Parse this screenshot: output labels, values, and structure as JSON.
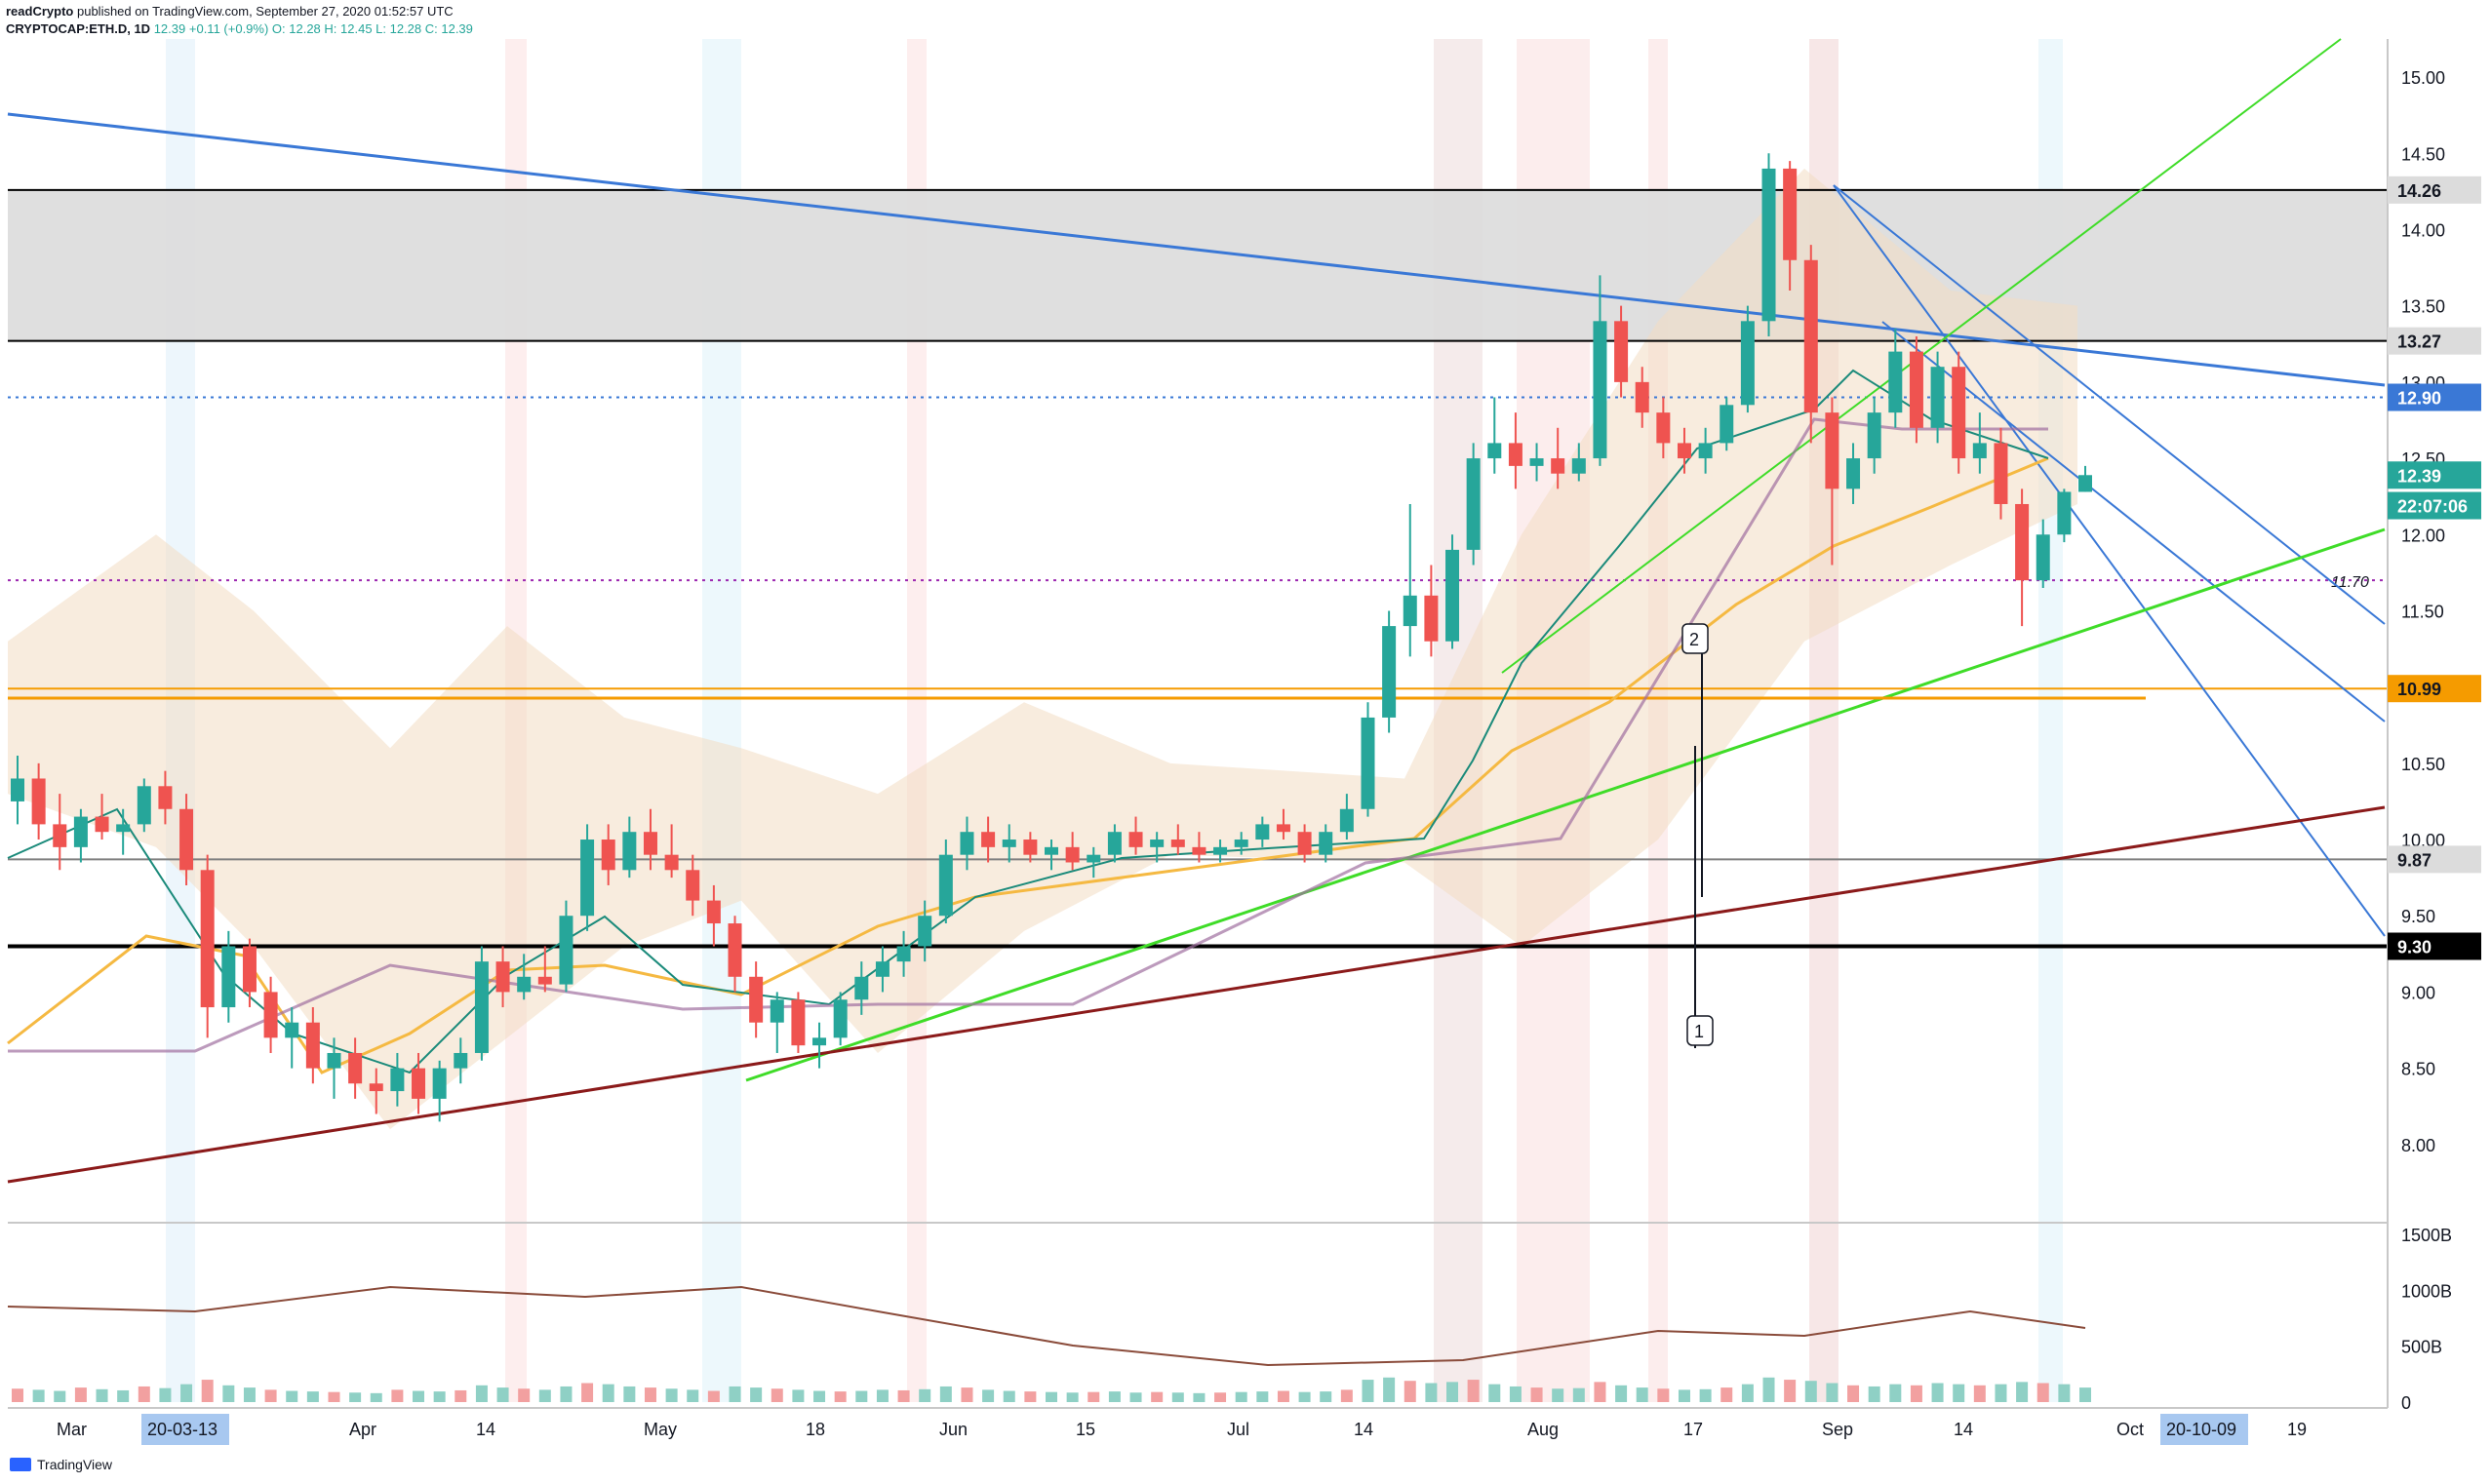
{
  "header": {
    "author": "readCrypto",
    "published": "published on TradingView.com, September 27, 2020 01:52:57 UTC",
    "symbol": "CRYPTOCAP:ETH.D, 1D",
    "last": "12.39",
    "change": "+0.11 (+0.9%)",
    "ohlc": "O: 12.28  H: 12.45  L: 12.28  C: 12.39"
  },
  "footer": {
    "brand": "TradingView"
  },
  "colors": {
    "up": "#26a69a",
    "down": "#ef5350",
    "blue_line": "#3a78d6",
    "green_line": "#3fdc28",
    "dark_red_line": "#8b1a1a",
    "orange_line": "#f59b00",
    "ma_yellow": "#f5b942",
    "ma_purple": "#a06fa0",
    "zone_gray": "#dcdcdc"
  },
  "chart_data": {
    "type": "candlestick",
    "x_axis": {
      "tick_labels": [
        "Mar",
        "Apr",
        "14",
        "May",
        "18",
        "Jun",
        "15",
        "Jul",
        "14",
        "Aug",
        "17",
        "Sep",
        "14",
        "Oct",
        "19"
      ],
      "highlighted_dates": [
        "20-03-13",
        "20-10-09"
      ]
    },
    "price_axis": {
      "ticks": [
        "15.00",
        "14.50",
        "14.00",
        "13.50",
        "13.00",
        "12.50",
        "12.00",
        "11.50",
        "11.00",
        "10.50",
        "10.00",
        "9.50",
        "9.00",
        "8.50",
        "8.00"
      ],
      "range": [
        7.5,
        15.25
      ]
    },
    "price_labels": [
      {
        "text": "14.26",
        "value": 14.26,
        "bg": "#dcdcdc",
        "fg": "#131722"
      },
      {
        "text": "13.27",
        "value": 13.27,
        "bg": "#dcdcdc",
        "fg": "#131722"
      },
      {
        "text": "12.90",
        "value": 12.9,
        "bg": "#3a78d6",
        "fg": "#ffffff"
      },
      {
        "text": "12.39",
        "value": 12.39,
        "bg": "#26a69a",
        "fg": "#ffffff"
      },
      {
        "text": "22:07:06",
        "value": 12.19,
        "bg": "#26a69a",
        "fg": "#ffffff"
      },
      {
        "text": "10.99",
        "value": 10.99,
        "bg": "#f59b00",
        "fg": "#131722"
      },
      {
        "text": "9.87",
        "value": 9.87,
        "bg": "#dcdcdc",
        "fg": "#131722"
      },
      {
        "text": "9.30",
        "value": 9.3,
        "bg": "#000000",
        "fg": "#ffffff"
      }
    ],
    "horizontal_levels": [
      {
        "value": 14.26,
        "color": "#000000",
        "style": "solid"
      },
      {
        "value": 13.27,
        "color": "#000000",
        "style": "solid"
      },
      {
        "value": 12.9,
        "color": "#3a78d6",
        "style": "dotted"
      },
      {
        "value": 11.7,
        "color": "#9c27b0",
        "style": "dotted",
        "label": "11.70"
      },
      {
        "value": 10.99,
        "color": "#f59b00",
        "style": "solid"
      },
      {
        "value": 9.87,
        "color": "#808080",
        "style": "solid"
      },
      {
        "value": 9.3,
        "color": "#000000",
        "style": "solid"
      }
    ],
    "annotations": [
      "1",
      "2"
    ],
    "volume_axis": {
      "ticks": [
        "1500B",
        "1000B",
        "500B",
        "0"
      ],
      "range": [
        0,
        1500
      ]
    },
    "candles": [
      [
        10.25,
        10.55,
        10.1,
        10.4
      ],
      [
        10.4,
        10.5,
        10.0,
        10.1
      ],
      [
        10.1,
        10.3,
        9.8,
        9.95
      ],
      [
        9.95,
        10.2,
        9.85,
        10.15
      ],
      [
        10.15,
        10.3,
        10.0,
        10.05
      ],
      [
        10.05,
        10.2,
        9.9,
        10.1
      ],
      [
        10.1,
        10.4,
        10.05,
        10.35
      ],
      [
        10.35,
        10.45,
        10.1,
        10.2
      ],
      [
        10.2,
        10.3,
        9.7,
        9.8
      ],
      [
        9.8,
        9.9,
        8.7,
        8.9
      ],
      [
        8.9,
        9.4,
        8.8,
        9.3
      ],
      [
        9.3,
        9.35,
        8.9,
        9.0
      ],
      [
        9.0,
        9.1,
        8.6,
        8.7
      ],
      [
        8.7,
        8.9,
        8.5,
        8.8
      ],
      [
        8.8,
        8.9,
        8.4,
        8.5
      ],
      [
        8.5,
        8.7,
        8.3,
        8.6
      ],
      [
        8.6,
        8.7,
        8.3,
        8.4
      ],
      [
        8.4,
        8.5,
        8.2,
        8.35
      ],
      [
        8.35,
        8.6,
        8.25,
        8.5
      ],
      [
        8.5,
        8.6,
        8.2,
        8.3
      ],
      [
        8.3,
        8.55,
        8.15,
        8.5
      ],
      [
        8.5,
        8.7,
        8.4,
        8.6
      ],
      [
        8.6,
        9.3,
        8.55,
        9.2
      ],
      [
        9.2,
        9.3,
        8.9,
        9.0
      ],
      [
        9.0,
        9.25,
        8.95,
        9.1
      ],
      [
        9.1,
        9.3,
        9.0,
        9.05
      ],
      [
        9.05,
        9.6,
        9.0,
        9.5
      ],
      [
        9.5,
        10.1,
        9.4,
        10.0
      ],
      [
        10.0,
        10.1,
        9.7,
        9.8
      ],
      [
        9.8,
        10.15,
        9.75,
        10.05
      ],
      [
        10.05,
        10.2,
        9.8,
        9.9
      ],
      [
        9.9,
        10.1,
        9.75,
        9.8
      ],
      [
        9.8,
        9.9,
        9.5,
        9.6
      ],
      [
        9.6,
        9.7,
        9.3,
        9.45
      ],
      [
        9.45,
        9.5,
        9.0,
        9.1
      ],
      [
        9.1,
        9.2,
        8.7,
        8.8
      ],
      [
        8.8,
        9.0,
        8.6,
        8.95
      ],
      [
        8.95,
        9.0,
        8.6,
        8.65
      ],
      [
        8.65,
        8.8,
        8.5,
        8.7
      ],
      [
        8.7,
        9.0,
        8.65,
        8.95
      ],
      [
        8.95,
        9.2,
        8.85,
        9.1
      ],
      [
        9.1,
        9.3,
        9.0,
        9.2
      ],
      [
        9.2,
        9.4,
        9.1,
        9.3
      ],
      [
        9.3,
        9.6,
        9.2,
        9.5
      ],
      [
        9.5,
        10.0,
        9.45,
        9.9
      ],
      [
        9.9,
        10.15,
        9.8,
        10.05
      ],
      [
        10.05,
        10.15,
        9.85,
        9.95
      ],
      [
        9.95,
        10.1,
        9.85,
        10.0
      ],
      [
        10.0,
        10.05,
        9.85,
        9.9
      ],
      [
        9.9,
        10.0,
        9.8,
        9.95
      ],
      [
        9.95,
        10.05,
        9.8,
        9.85
      ],
      [
        9.85,
        9.95,
        9.75,
        9.9
      ],
      [
        9.9,
        10.1,
        9.85,
        10.05
      ],
      [
        10.05,
        10.15,
        9.9,
        9.95
      ],
      [
        9.95,
        10.05,
        9.85,
        10.0
      ],
      [
        10.0,
        10.1,
        9.9,
        9.95
      ],
      [
        9.95,
        10.05,
        9.85,
        9.9
      ],
      [
        9.9,
        10.0,
        9.85,
        9.95
      ],
      [
        9.95,
        10.05,
        9.9,
        10.0
      ],
      [
        10.0,
        10.15,
        9.95,
        10.1
      ],
      [
        10.1,
        10.2,
        10.0,
        10.05
      ],
      [
        10.05,
        10.1,
        9.85,
        9.9
      ],
      [
        9.9,
        10.1,
        9.85,
        10.05
      ],
      [
        10.05,
        10.3,
        10.0,
        10.2
      ],
      [
        10.2,
        10.9,
        10.15,
        10.8
      ],
      [
        10.8,
        11.5,
        10.7,
        11.4
      ],
      [
        11.4,
        12.2,
        11.2,
        11.6
      ],
      [
        11.6,
        11.8,
        11.2,
        11.3
      ],
      [
        11.3,
        12.0,
        11.25,
        11.9
      ],
      [
        11.9,
        12.6,
        11.8,
        12.5
      ],
      [
        12.5,
        12.9,
        12.4,
        12.6
      ],
      [
        12.6,
        12.8,
        12.3,
        12.45
      ],
      [
        12.45,
        12.6,
        12.35,
        12.5
      ],
      [
        12.5,
        12.7,
        12.3,
        12.4
      ],
      [
        12.4,
        12.6,
        12.35,
        12.5
      ],
      [
        12.5,
        13.7,
        12.45,
        13.4
      ],
      [
        13.4,
        13.5,
        12.9,
        13.0
      ],
      [
        13.0,
        13.1,
        12.7,
        12.8
      ],
      [
        12.8,
        12.9,
        12.5,
        12.6
      ],
      [
        12.6,
        12.7,
        12.4,
        12.5
      ],
      [
        12.5,
        12.7,
        12.4,
        12.6
      ],
      [
        12.6,
        12.9,
        12.55,
        12.85
      ],
      [
        12.85,
        13.5,
        12.8,
        13.4
      ],
      [
        13.4,
        14.5,
        13.3,
        14.4
      ],
      [
        14.4,
        14.45,
        13.6,
        13.8
      ],
      [
        13.8,
        13.9,
        12.6,
        12.8
      ],
      [
        12.8,
        12.9,
        11.8,
        12.3
      ],
      [
        12.3,
        12.6,
        12.2,
        12.5
      ],
      [
        12.5,
        12.9,
        12.4,
        12.8
      ],
      [
        12.8,
        13.35,
        12.7,
        13.2
      ],
      [
        13.2,
        13.3,
        12.6,
        12.7
      ],
      [
        12.7,
        13.2,
        12.6,
        13.1
      ],
      [
        13.1,
        13.2,
        12.4,
        12.5
      ],
      [
        12.5,
        12.8,
        12.4,
        12.6
      ],
      [
        12.6,
        12.7,
        12.1,
        12.2
      ],
      [
        12.2,
        12.3,
        11.4,
        11.7
      ],
      [
        11.7,
        12.1,
        11.65,
        12.0
      ],
      [
        12.0,
        12.3,
        11.95,
        12.28
      ],
      [
        12.28,
        12.45,
        12.28,
        12.39
      ]
    ],
    "volume_bars": [
      120,
      110,
      100,
      130,
      115,
      105,
      140,
      125,
      160,
      200,
      150,
      130,
      110,
      100,
      95,
      90,
      85,
      80,
      110,
      100,
      95,
      105,
      150,
      130,
      120,
      110,
      140,
      170,
      160,
      140,
      130,
      120,
      110,
      100,
      140,
      130,
      120,
      110,
      100,
      95,
      100,
      110,
      105,
      115,
      140,
      130,
      110,
      100,
      95,
      90,
      85,
      90,
      95,
      85,
      90,
      85,
      80,
      85,
      90,
      95,
      100,
      90,
      95,
      110,
      200,
      220,
      190,
      170,
      180,
      200,
      160,
      140,
      130,
      120,
      125,
      180,
      150,
      130,
      120,
      110,
      115,
      130,
      160,
      220,
      200,
      190,
      170,
      150,
      140,
      160,
      150,
      170,
      160,
      150,
      160,
      180,
      170,
      160,
      130
    ]
  }
}
